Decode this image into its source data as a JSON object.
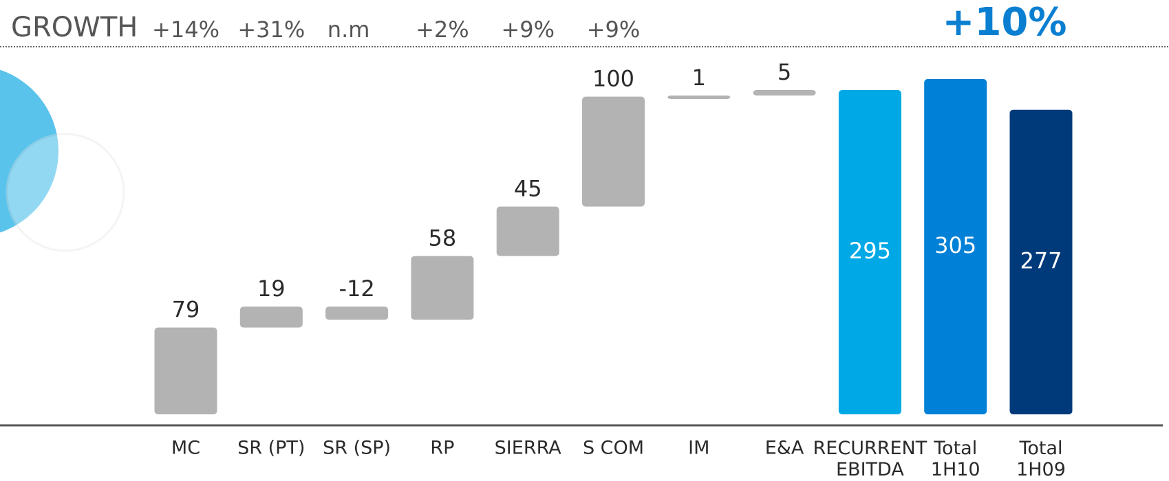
{
  "chart_data": {
    "type": "waterfall",
    "title": "GROWTH",
    "headline": "+10%",
    "growth_labels": [
      "+14%",
      "+31%",
      "n.m",
      "+2%",
      "+9%",
      "+9%"
    ],
    "categories": [
      "MC",
      "SR (PT)",
      "SR (SP)",
      "RP",
      "SIERRA",
      "S COM",
      "IM",
      "E&A",
      "RECURRENT\nEBITDA",
      "Total\n1H10",
      "Total\n1H09"
    ],
    "values": [
      79,
      19,
      -12,
      58,
      45,
      100,
      1,
      5,
      295,
      305,
      277
    ],
    "total": [
      false,
      false,
      false,
      false,
      false,
      false,
      false,
      false,
      true,
      true,
      true
    ],
    "colors": [
      "#b3b3b3",
      "#b3b3b3",
      "#b3b3b3",
      "#b3b3b3",
      "#b3b3b3",
      "#b3b3b3",
      "#b3b3b3",
      "#b3b3b3",
      "#00a9e6",
      "#0080d6",
      "#003a7a"
    ]
  }
}
